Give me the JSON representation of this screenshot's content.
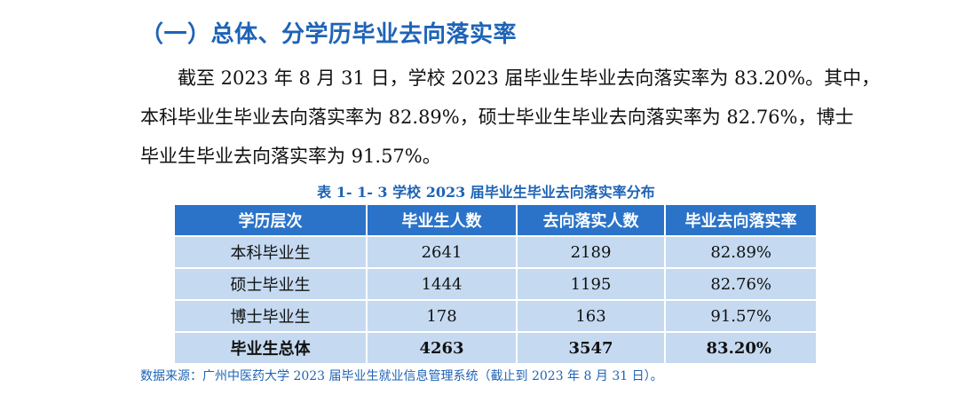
{
  "heading": "（一）总体、分学历毕业去向落实率",
  "paragraph": {
    "line1": "截至 2023 年 8 月 31 日，学校 2023 届毕业生毕业去向落实率为 83.20%。其中，",
    "line2": "本科毕业生毕业去向落实率为 82.89%，硕士毕业生毕业去向落实率为 82.76%，博士",
    "line3": "毕业生毕业去向落实率为 91.57%。"
  },
  "table": {
    "caption": "表 1- 1- 3  学校 2023 届毕业生毕业去向落实率分布",
    "headers": [
      "学历层次",
      "毕业生人数",
      "去向落实人数",
      "毕业去向落实率"
    ],
    "rows": [
      [
        "本科毕业生",
        "2641",
        "2189",
        "82.89%"
      ],
      [
        "硕士毕业生",
        "1444",
        "1195",
        "82.76%"
      ],
      [
        "博士毕业生",
        "178",
        "163",
        "91.57%"
      ],
      [
        "毕业生总体",
        "4263",
        "3547",
        "83.20%"
      ]
    ]
  },
  "source": "数据来源：广州中医药大学 2023 届毕业生就业信息管理系统（截止到 2023 年 8 月 31 日）。",
  "colors": {
    "accent": "#1e63b6",
    "header_bg": "#2a73c9",
    "cell_bg": "#c5daf1"
  }
}
